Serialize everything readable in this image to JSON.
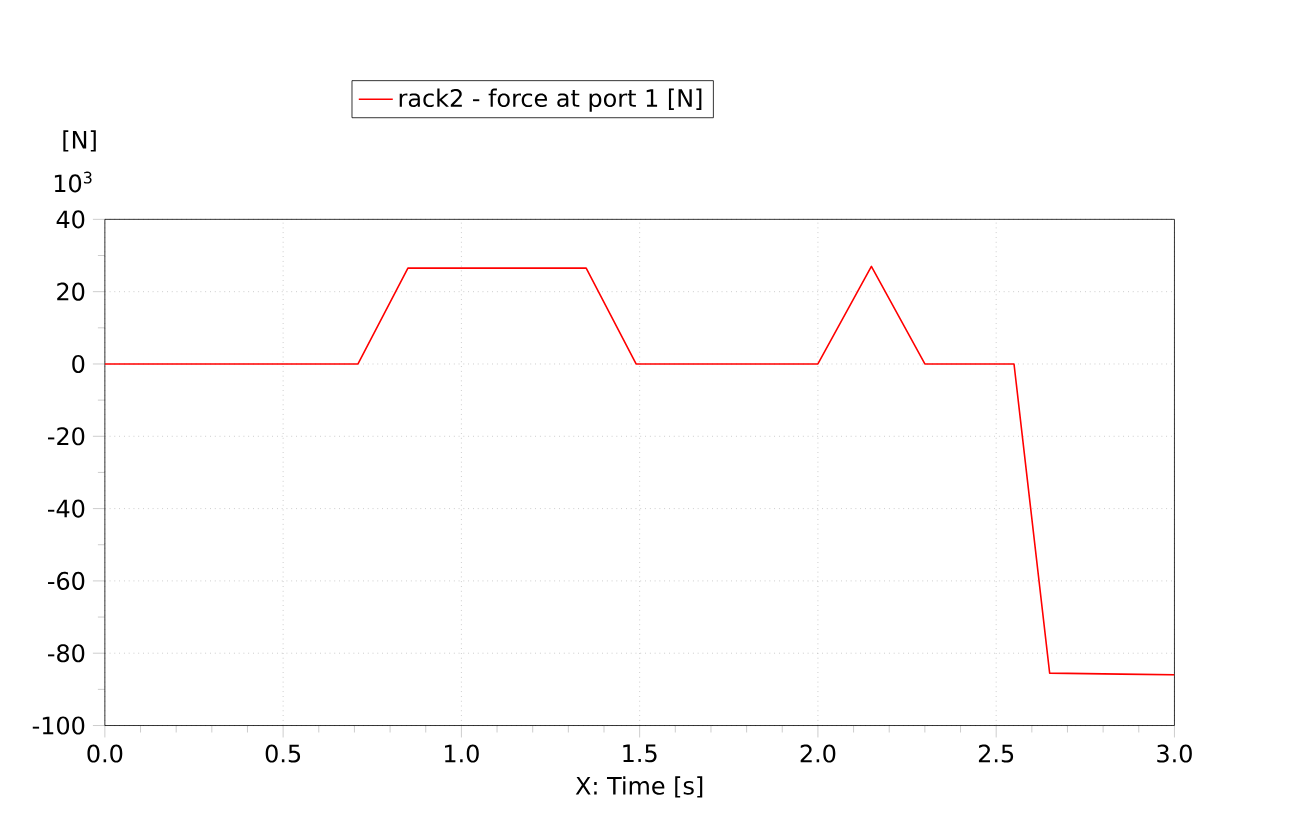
{
  "chart_data": {
    "type": "line",
    "xlabel": "X: Time [s]",
    "ylabel": "[N]",
    "annotations": [
      "10$^{3}$"
    ],
    "xlim": [
      0,
      3
    ],
    "xticks": [
      {
        "value": 0,
        "label": "0.0"
      },
      0.5,
      {
        "value": 1,
        "label": "1.0"
      },
      1.5,
      {
        "value": 2,
        "label": "2.0"
      },
      2.5,
      {
        "value": 3,
        "label": "3.0"
      }
    ],
    "ylim": [
      -100,
      40
    ],
    "yticks": [
      -100,
      -80,
      -60,
      -40,
      -20,
      0,
      20,
      40
    ],
    "grid": true,
    "legend": "top",
    "line_style": "solid",
    "marker": "none",
    "series": [
      {
        "name": "rack2 - force at port 1 [N]",
        "color": "#ff0000",
        "x": [
          0,
          0.71,
          0.85,
          1.35,
          1.49,
          2.0,
          2.15,
          2.3,
          2.55,
          2.65,
          3.0
        ],
        "values": [
          0,
          0,
          26.5,
          26.5,
          0,
          0,
          27,
          0,
          0,
          -85.5,
          -86
        ]
      }
    ]
  }
}
